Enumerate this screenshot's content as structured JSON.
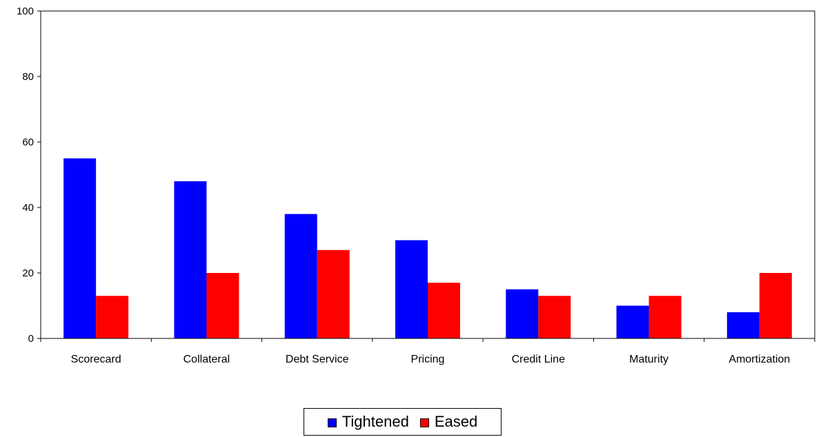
{
  "chart_data": {
    "type": "bar",
    "title": "",
    "xlabel": "",
    "ylabel": "",
    "categories": [
      "Scorecard",
      "Collateral",
      "Debt Service",
      "Pricing",
      "Credit Line",
      "Maturity",
      "Amortization"
    ],
    "series": [
      {
        "name": "Tightened",
        "color": "#0000ff",
        "values": [
          55,
          48,
          38,
          30,
          15,
          10,
          8
        ]
      },
      {
        "name": "Eased",
        "color": "#ff0000",
        "values": [
          13,
          20,
          27,
          17,
          13,
          13,
          20
        ]
      }
    ],
    "ylim": [
      0,
      100
    ],
    "yticks": [
      "0",
      "20",
      "40",
      "60",
      "80",
      "100"
    ],
    "grid": false,
    "legend_position": "bottom"
  }
}
